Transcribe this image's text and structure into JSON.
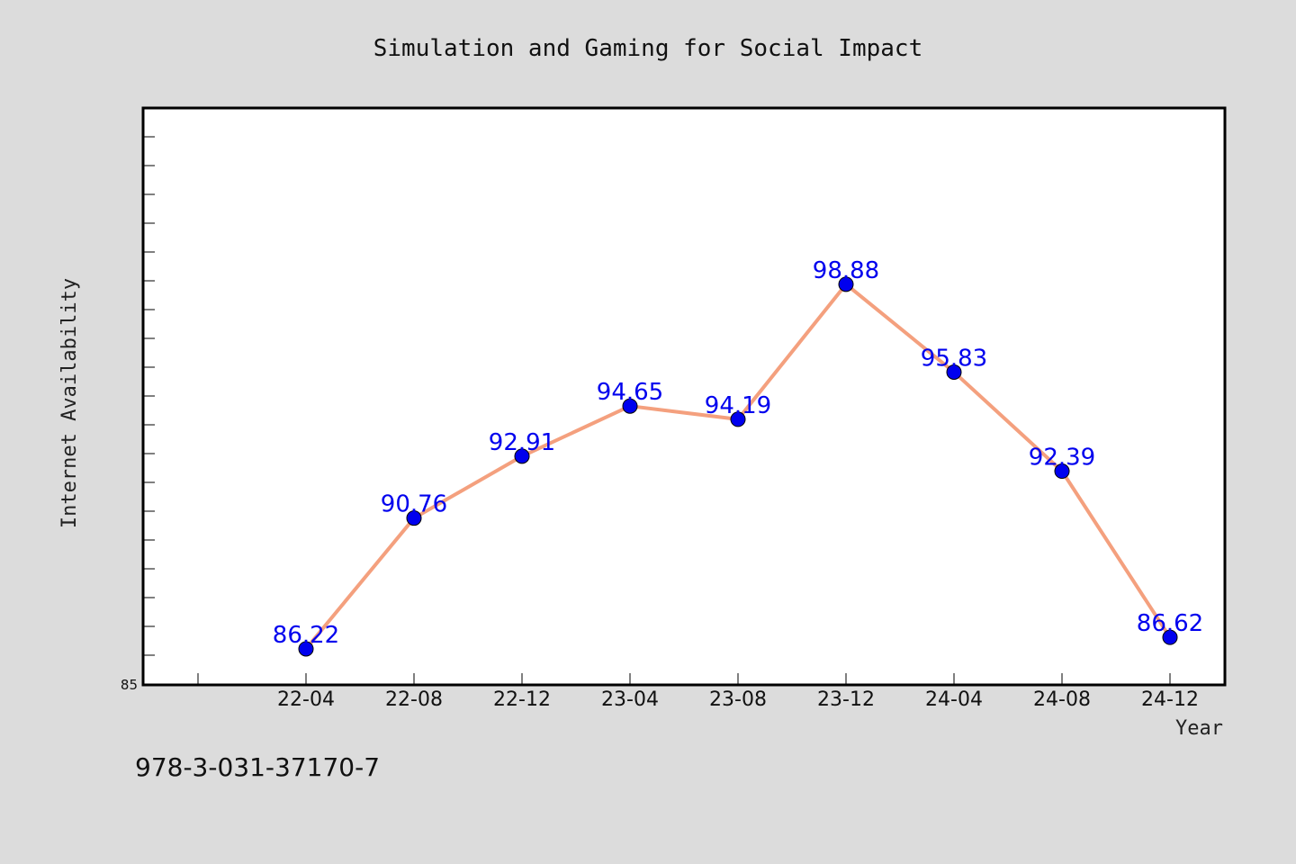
{
  "chart_data": {
    "type": "line",
    "title": "Simulation and Gaming for Social Impact",
    "xlabel": "Year",
    "ylabel": "Internet Availability",
    "categories": [
      "22-04",
      "22-08",
      "22-12",
      "23-04",
      "23-08",
      "23-12",
      "24-04",
      "24-08",
      "24-12"
    ],
    "series": [
      {
        "values": [
          86.22,
          90.76,
          92.91,
          94.65,
          94.19,
          98.88,
          95.83,
          92.39,
          86.62
        ],
        "labels": [
          "86.22",
          "90.76",
          "92.91",
          "94.65",
          "94.19",
          "98.88",
          "95.83",
          "92.39",
          "86.62"
        ]
      }
    ],
    "ylim": [
      85,
      105
    ],
    "ytick_labels": [
      "85"
    ],
    "grid": false,
    "legend": "none",
    "data_labels": true
  },
  "footer": {
    "isbn": "978-3-031-37170-7"
  },
  "colors": {
    "background": "#dcdcdc",
    "plot_area": "#ffffff",
    "line": "#f4a07e",
    "marker": "#0000ee",
    "data_label": "#0000ee"
  }
}
